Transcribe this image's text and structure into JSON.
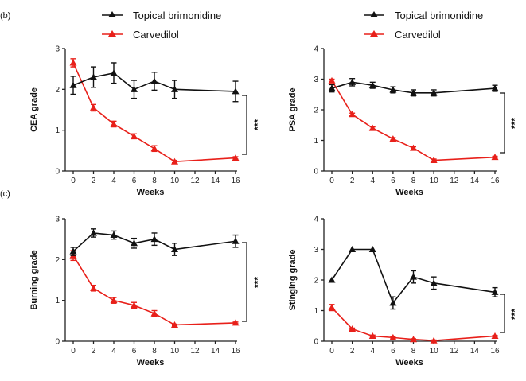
{
  "panel_labels": [
    "(b)",
    "(c)"
  ],
  "legend": {
    "items": [
      {
        "name": "Topical brimonidine",
        "color": "#111111"
      },
      {
        "name": "Carvedilol",
        "color": "#e8201a"
      }
    ]
  },
  "chart_data": [
    {
      "type": "line",
      "xlabel": "Weeks",
      "ylabel": "CEA grade",
      "x": [
        0,
        2,
        4,
        6,
        8,
        10,
        16
      ],
      "x_ticks": [
        "0",
        "2",
        "4",
        "6",
        "8",
        "10",
        "12",
        "14",
        "16"
      ],
      "y_ticks": [
        "0",
        "1",
        "2",
        "3"
      ],
      "xlim": [
        0,
        16
      ],
      "ylim": [
        0,
        3
      ],
      "significance": "***",
      "series": [
        {
          "name": "Topical brimonidine",
          "color": "#111111",
          "values": [
            2.1,
            2.3,
            2.4,
            2.0,
            2.2,
            2.0,
            1.95
          ],
          "errors": [
            0.22,
            0.25,
            0.25,
            0.22,
            0.22,
            0.22,
            0.25
          ]
        },
        {
          "name": "Carvedilol",
          "color": "#e8201a",
          "values": [
            2.65,
            1.55,
            1.15,
            0.85,
            0.55,
            0.23,
            0.32
          ],
          "errors": [
            0.1,
            0.08,
            0.07,
            0.06,
            0.07,
            0.03,
            0.03
          ]
        }
      ]
    },
    {
      "type": "line",
      "xlabel": "Weeks",
      "ylabel": "PSA grade",
      "x": [
        0,
        2,
        4,
        6,
        8,
        10,
        16
      ],
      "x_ticks": [
        "0",
        "2",
        "4",
        "6",
        "8",
        "10",
        "12",
        "14",
        "16"
      ],
      "y_ticks": [
        "0",
        "1",
        "2",
        "3",
        "4"
      ],
      "xlim": [
        0,
        16
      ],
      "ylim": [
        0,
        4
      ],
      "significance": "***",
      "series": [
        {
          "name": "Topical brimonidine",
          "color": "#111111",
          "values": [
            2.7,
            2.9,
            2.8,
            2.65,
            2.55,
            2.55,
            2.7
          ],
          "errors": [
            0.12,
            0.12,
            0.1,
            0.1,
            0.1,
            0.1,
            0.1
          ]
        },
        {
          "name": "Carvedilol",
          "color": "#e8201a",
          "values": [
            2.95,
            1.85,
            1.4,
            1.05,
            0.75,
            0.35,
            0.45
          ],
          "errors": [
            0.05,
            0.04,
            0.04,
            0.04,
            0.04,
            0.04,
            0.03
          ]
        }
      ]
    },
    {
      "type": "line",
      "xlabel": "Weeks",
      "ylabel": "Burning grade",
      "x": [
        0,
        2,
        4,
        6,
        8,
        10,
        16
      ],
      "x_ticks": [
        "0",
        "2",
        "4",
        "6",
        "8",
        "10",
        "12",
        "14",
        "16"
      ],
      "y_ticks": [
        "0",
        "1",
        "2",
        "3"
      ],
      "xlim": [
        0,
        16
      ],
      "ylim": [
        0,
        3
      ],
      "significance": "***",
      "series": [
        {
          "name": "Topical brimonidine",
          "color": "#111111",
          "values": [
            2.2,
            2.65,
            2.6,
            2.4,
            2.5,
            2.25,
            2.45
          ],
          "errors": [
            0.1,
            0.1,
            0.1,
            0.12,
            0.15,
            0.15,
            0.15
          ]
        },
        {
          "name": "Carvedilol",
          "color": "#e8201a",
          "values": [
            2.1,
            1.3,
            1.0,
            0.88,
            0.68,
            0.4,
            0.45
          ],
          "errors": [
            0.12,
            0.07,
            0.07,
            0.07,
            0.07,
            0.02,
            0.02
          ]
        }
      ]
    },
    {
      "type": "line",
      "xlabel": "Weeks",
      "ylabel": "Stinging grade",
      "x": [
        0,
        2,
        4,
        6,
        8,
        10,
        16
      ],
      "x_ticks": [
        "0",
        "2",
        "4",
        "6",
        "8",
        "10",
        "12",
        "14",
        "16"
      ],
      "y_ticks": [
        "0",
        "1",
        "2",
        "3",
        "4"
      ],
      "xlim": [
        0,
        16
      ],
      "ylim": [
        0,
        4
      ],
      "significance": "***",
      "series": [
        {
          "name": "Topical brimonidine",
          "color": "#111111",
          "values": [
            2.0,
            3.0,
            3.0,
            1.25,
            2.1,
            1.9,
            1.6
          ],
          "errors": [
            0.0,
            0.0,
            0.0,
            0.2,
            0.2,
            0.2,
            0.15
          ]
        },
        {
          "name": "Carvedilol",
          "color": "#e8201a",
          "values": [
            1.1,
            0.4,
            0.17,
            0.12,
            0.06,
            0.02,
            0.17
          ],
          "errors": [
            0.1,
            0.03,
            0.03,
            0.03,
            0.02,
            0.02,
            0.02
          ]
        }
      ]
    }
  ]
}
